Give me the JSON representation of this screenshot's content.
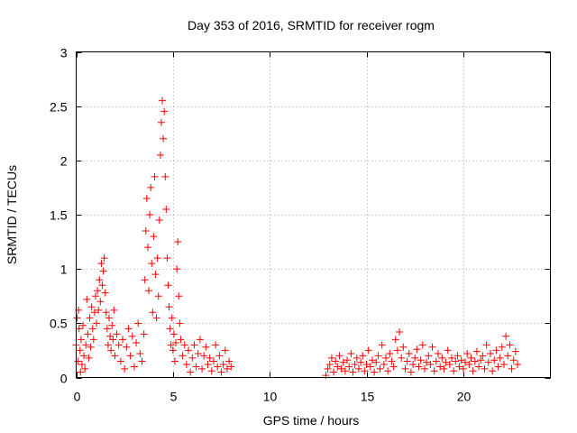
{
  "chart_data": {
    "type": "scatter",
    "title": "Day 353 of 2016, SRMTID for receiver rogm",
    "xlabel": "GPS time / hours",
    "ylabel": "SRMTID / TECUs",
    "xlim": [
      0,
      24.5
    ],
    "ylim": [
      0,
      3
    ],
    "xticks": [
      0,
      5,
      10,
      15,
      20
    ],
    "xtick_labels": [
      "0",
      "5",
      "10",
      "15",
      "20"
    ],
    "yticks": [
      0,
      0.5,
      1,
      1.5,
      2,
      2.5,
      3
    ],
    "ytick_labels": [
      "0",
      "0.5",
      "1",
      "1.5",
      "2",
      "2.5",
      "3"
    ],
    "grid": true,
    "marker": "+",
    "series": [
      {
        "name": "SRMTID",
        "color": "#ff0000",
        "points": [
          [
            0.0,
            0.3
          ],
          [
            0.05,
            0.55
          ],
          [
            0.1,
            0.15
          ],
          [
            0.12,
            0.62
          ],
          [
            0.15,
            0.45
          ],
          [
            0.2,
            0.25
          ],
          [
            0.22,
            0.05
          ],
          [
            0.25,
            0.35
          ],
          [
            0.3,
            0.12
          ],
          [
            0.35,
            0.48
          ],
          [
            0.4,
            0.2
          ],
          [
            0.45,
            0.08
          ],
          [
            0.5,
            0.3
          ],
          [
            0.55,
            0.72
          ],
          [
            0.6,
            0.4
          ],
          [
            0.65,
            0.18
          ],
          [
            0.7,
            0.55
          ],
          [
            0.75,
            0.28
          ],
          [
            0.8,
            0.65
          ],
          [
            0.85,
            0.45
          ],
          [
            0.9,
            0.35
          ],
          [
            0.95,
            0.6
          ],
          [
            1.0,
            0.75
          ],
          [
            1.05,
            0.5
          ],
          [
            1.1,
            0.8
          ],
          [
            1.15,
            0.62
          ],
          [
            1.2,
            0.9
          ],
          [
            1.25,
            0.7
          ],
          [
            1.3,
            1.05
          ],
          [
            1.35,
            0.85
          ],
          [
            1.4,
            0.98
          ],
          [
            1.45,
            1.1
          ],
          [
            1.5,
            0.78
          ],
          [
            1.55,
            0.6
          ],
          [
            1.6,
            0.45
          ],
          [
            1.65,
            0.3
          ],
          [
            1.7,
            0.55
          ],
          [
            1.75,
            0.38
          ],
          [
            1.8,
            0.25
          ],
          [
            1.85,
            0.48
          ],
          [
            1.9,
            0.35
          ],
          [
            1.95,
            0.62
          ],
          [
            2.0,
            0.2
          ],
          [
            2.1,
            0.4
          ],
          [
            2.2,
            0.3
          ],
          [
            2.3,
            0.15
          ],
          [
            2.4,
            0.35
          ],
          [
            2.5,
            0.08
          ],
          [
            2.6,
            0.28
          ],
          [
            2.7,
            0.45
          ],
          [
            2.8,
            0.2
          ],
          [
            2.9,
            0.38
          ],
          [
            3.0,
            0.1
          ],
          [
            3.1,
            0.32
          ],
          [
            3.2,
            0.5
          ],
          [
            3.3,
            0.22
          ],
          [
            3.4,
            0.15
          ],
          [
            3.5,
            0.4
          ],
          [
            3.55,
            0.9
          ],
          [
            3.6,
            1.35
          ],
          [
            3.65,
            1.65
          ],
          [
            3.7,
            1.2
          ],
          [
            3.75,
            0.8
          ],
          [
            3.8,
            1.5
          ],
          [
            3.85,
            1.75
          ],
          [
            3.9,
            1.05
          ],
          [
            3.95,
            0.6
          ],
          [
            4.0,
            1.3
          ],
          [
            4.05,
            1.85
          ],
          [
            4.1,
            0.95
          ],
          [
            4.15,
            0.55
          ],
          [
            4.2,
            1.1
          ],
          [
            4.25,
            0.75
          ],
          [
            4.3,
            1.45
          ],
          [
            4.35,
            2.05
          ],
          [
            4.4,
            2.35
          ],
          [
            4.45,
            2.55
          ],
          [
            4.5,
            2.2
          ],
          [
            4.55,
            2.45
          ],
          [
            4.6,
            1.85
          ],
          [
            4.65,
            1.55
          ],
          [
            4.7,
            1.1
          ],
          [
            4.75,
            0.85
          ],
          [
            4.8,
            0.65
          ],
          [
            4.85,
            0.45
          ],
          [
            4.9,
            0.3
          ],
          [
            4.95,
            0.55
          ],
          [
            5.0,
            0.25
          ],
          [
            5.05,
            0.4
          ],
          [
            5.1,
            0.15
          ],
          [
            5.15,
            0.32
          ],
          [
            5.2,
            1.0
          ],
          [
            5.25,
            1.25
          ],
          [
            5.3,
            0.75
          ],
          [
            5.35,
            0.5
          ],
          [
            5.4,
            0.35
          ],
          [
            5.5,
            0.2
          ],
          [
            5.6,
            0.3
          ],
          [
            5.7,
            0.12
          ],
          [
            5.8,
            0.25
          ],
          [
            5.9,
            0.05
          ],
          [
            6.0,
            0.18
          ],
          [
            6.1,
            0.3
          ],
          [
            6.2,
            0.1
          ],
          [
            6.3,
            0.22
          ],
          [
            6.4,
            0.35
          ],
          [
            6.5,
            0.08
          ],
          [
            6.6,
            0.2
          ],
          [
            6.7,
            0.28
          ],
          [
            6.8,
            0.12
          ],
          [
            6.9,
            0.18
          ],
          [
            7.0,
            0.06
          ],
          [
            7.1,
            0.15
          ],
          [
            7.2,
            0.3
          ],
          [
            7.3,
            0.1
          ],
          [
            7.4,
            0.2
          ],
          [
            7.5,
            0.05
          ],
          [
            7.6,
            0.12
          ],
          [
            7.7,
            0.25
          ],
          [
            7.8,
            0.08
          ],
          [
            7.9,
            0.15
          ],
          [
            8.0,
            0.1
          ],
          [
            12.9,
            0.02
          ],
          [
            13.0,
            0.08
          ],
          [
            13.1,
            0.12
          ],
          [
            13.2,
            0.18
          ],
          [
            13.3,
            0.05
          ],
          [
            13.4,
            0.15
          ],
          [
            13.5,
            0.1
          ],
          [
            13.6,
            0.2
          ],
          [
            13.7,
            0.08
          ],
          [
            13.8,
            0.14
          ],
          [
            13.9,
            0.06
          ],
          [
            14.0,
            0.16
          ],
          [
            14.1,
            0.1
          ],
          [
            14.2,
            0.22
          ],
          [
            14.3,
            0.05
          ],
          [
            14.4,
            0.12
          ],
          [
            14.5,
            0.18
          ],
          [
            14.6,
            0.08
          ],
          [
            14.7,
            0.14
          ],
          [
            14.8,
            0.2
          ],
          [
            14.9,
            0.06
          ],
          [
            15.0,
            0.12
          ],
          [
            15.1,
            0.25
          ],
          [
            15.2,
            0.1
          ],
          [
            15.3,
            0.16
          ],
          [
            15.4,
            0.05
          ],
          [
            15.5,
            0.14
          ],
          [
            15.6,
            0.2
          ],
          [
            15.7,
            0.08
          ],
          [
            15.8,
            0.3
          ],
          [
            15.9,
            0.12
          ],
          [
            16.0,
            0.18
          ],
          [
            16.1,
            0.06
          ],
          [
            16.2,
            0.22
          ],
          [
            16.3,
            0.15
          ],
          [
            16.4,
            0.1
          ],
          [
            16.5,
            0.35
          ],
          [
            16.6,
            0.25
          ],
          [
            16.7,
            0.42
          ],
          [
            16.8,
            0.18
          ],
          [
            16.9,
            0.28
          ],
          [
            17.0,
            0.08
          ],
          [
            17.1,
            0.15
          ],
          [
            17.2,
            0.22
          ],
          [
            17.3,
            0.05
          ],
          [
            17.4,
            0.12
          ],
          [
            17.5,
            0.18
          ],
          [
            17.6,
            0.26
          ],
          [
            17.7,
            0.1
          ],
          [
            17.8,
            0.16
          ],
          [
            17.9,
            0.3
          ],
          [
            18.0,
            0.08
          ],
          [
            18.1,
            0.14
          ],
          [
            18.2,
            0.2
          ],
          [
            18.3,
            0.12
          ],
          [
            18.4,
            0.28
          ],
          [
            18.5,
            0.06
          ],
          [
            18.6,
            0.15
          ],
          [
            18.7,
            0.22
          ],
          [
            18.8,
            0.1
          ],
          [
            18.9,
            0.18
          ],
          [
            19.0,
            0.08
          ],
          [
            19.1,
            0.14
          ],
          [
            19.2,
            0.25
          ],
          [
            19.3,
            0.12
          ],
          [
            19.4,
            0.18
          ],
          [
            19.5,
            0.06
          ],
          [
            19.6,
            0.15
          ],
          [
            19.7,
            0.2
          ],
          [
            19.8,
            0.1
          ],
          [
            19.9,
            0.16
          ],
          [
            20.0,
            0.08
          ],
          [
            20.1,
            0.14
          ],
          [
            20.2,
            0.22
          ],
          [
            20.3,
            0.12
          ],
          [
            20.4,
            0.18
          ],
          [
            20.5,
            0.06
          ],
          [
            20.6,
            0.15
          ],
          [
            20.7,
            0.24
          ],
          [
            20.8,
            0.1
          ],
          [
            20.9,
            0.16
          ],
          [
            21.0,
            0.2
          ],
          [
            21.1,
            0.08
          ],
          [
            21.2,
            0.3
          ],
          [
            21.3,
            0.14
          ],
          [
            21.4,
            0.22
          ],
          [
            21.5,
            0.06
          ],
          [
            21.6,
            0.16
          ],
          [
            21.7,
            0.25
          ],
          [
            21.8,
            0.1
          ],
          [
            21.9,
            0.18
          ],
          [
            22.0,
            0.28
          ],
          [
            22.1,
            0.12
          ],
          [
            22.2,
            0.38
          ],
          [
            22.3,
            0.2
          ],
          [
            22.4,
            0.3
          ],
          [
            22.5,
            0.08
          ],
          [
            22.6,
            0.16
          ],
          [
            22.7,
            0.24
          ],
          [
            22.8,
            0.12
          ]
        ]
      }
    ]
  }
}
